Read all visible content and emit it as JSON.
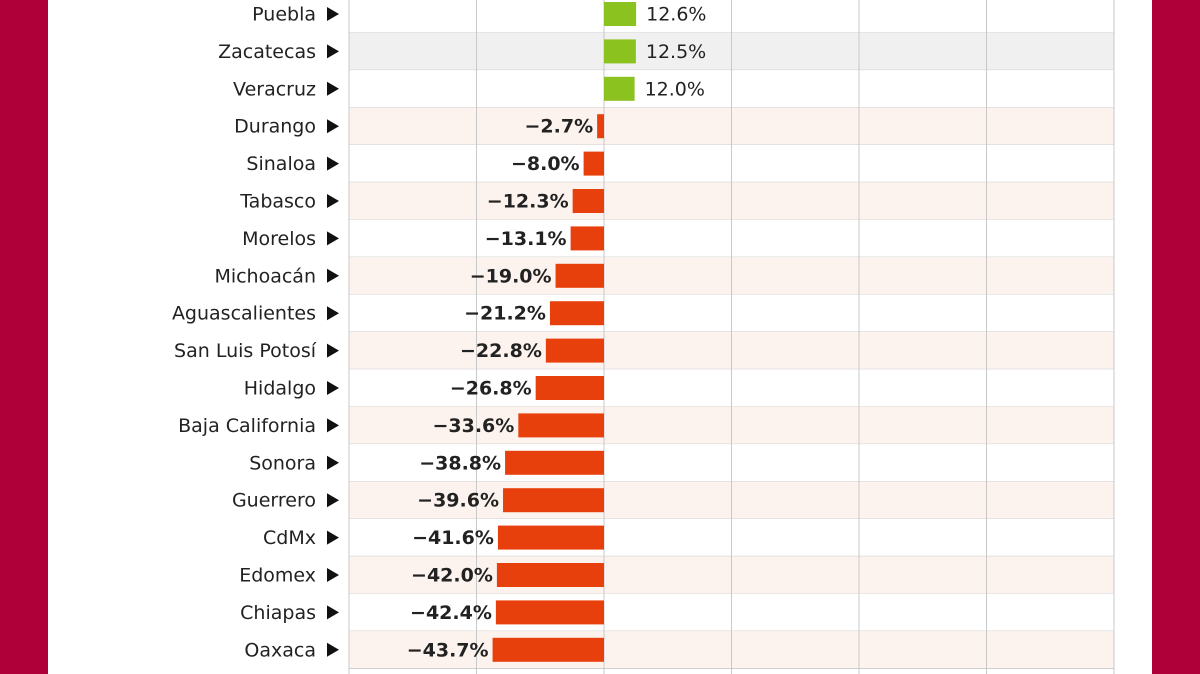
{
  "chart_data": {
    "type": "hbar",
    "categories": [
      "Puebla",
      "Zacatecas",
      "Veracruz",
      "Durango",
      "Sinaloa",
      "Tabasco",
      "Morelos",
      "Michoacán",
      "Aguascalientes",
      "San Luis Potosí",
      "Hidalgo",
      "Baja California",
      "Sonora",
      "Guerrero",
      "CdMx",
      "Edomex",
      "Chiapas",
      "Oaxaca"
    ],
    "values": [
      12.6,
      12.5,
      12.0,
      -2.7,
      -8.0,
      -12.3,
      -13.1,
      -19.0,
      -21.2,
      -22.8,
      -26.8,
      -33.6,
      -38.8,
      -39.6,
      -41.6,
      -42.0,
      -42.4,
      -43.7
    ],
    "value_labels": [
      "12.6%",
      "12.5%",
      "12.0%",
      "−2.7%",
      "−8.0%",
      "−12.3%",
      "−13.1%",
      "−19.0%",
      "−21.2%",
      "−22.8%",
      "−26.8%",
      "−33.6%",
      "−38.8%",
      "−39.6%",
      "−41.6%",
      "−42.0%",
      "−42.4%",
      "−43.7%"
    ],
    "positive_color": "#8cc21f",
    "negative_color": "#e8400c",
    "xlim": [
      -100,
      200
    ],
    "xticks": [
      -100,
      -50,
      0,
      50,
      100,
      150,
      200
    ],
    "grid": true
  }
}
